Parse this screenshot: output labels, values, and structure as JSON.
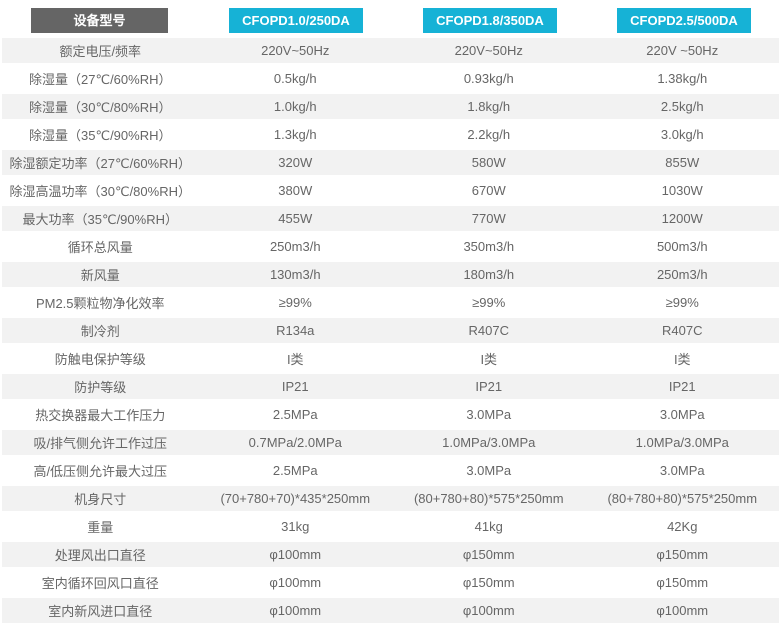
{
  "colors": {
    "corner_header_bg": "#656565",
    "model_header_bg": "#16b2d6",
    "header_text": "#ffffff",
    "alt_row_bg": "#f2f2f2",
    "body_text": "#666666"
  },
  "chart_data": {
    "type": "table",
    "corner_label": "设备型号",
    "columns": [
      "CFOPD1.0/250DA",
      "CFOPD1.8/350DA",
      "CFOPD2.5/500DA"
    ],
    "rows": [
      {
        "label": "额定电压/频率",
        "values": [
          "220V~50Hz",
          "220V~50Hz",
          "220V ~50Hz"
        ]
      },
      {
        "label": "除湿量（27℃/60%RH）",
        "values": [
          "0.5kg/h",
          "0.93kg/h",
          "1.38kg/h"
        ]
      },
      {
        "label": "除湿量（30℃/80%RH）",
        "values": [
          "1.0kg/h",
          "1.8kg/h",
          "2.5kg/h"
        ]
      },
      {
        "label": "除湿量（35℃/90%RH）",
        "values": [
          "1.3kg/h",
          "2.2kg/h",
          "3.0kg/h"
        ]
      },
      {
        "label": "除湿额定功率（27℃/60%RH）",
        "values": [
          "320W",
          "580W",
          "855W"
        ]
      },
      {
        "label": "除湿高温功率（30℃/80%RH）",
        "values": [
          "380W",
          "670W",
          "1030W"
        ]
      },
      {
        "label": "最大功率（35℃/90%RH）",
        "values": [
          "455W",
          "770W",
          "1200W"
        ]
      },
      {
        "label": "循环总风量",
        "values": [
          "250m3/h",
          "350m3/h",
          "500m3/h"
        ]
      },
      {
        "label": "新风量",
        "values": [
          "130m3/h",
          "180m3/h",
          "250m3/h"
        ]
      },
      {
        "label": "PM2.5颗粒物净化效率",
        "values": [
          "≥99%",
          "≥99%",
          "≥99%"
        ]
      },
      {
        "label": "制冷剂",
        "values": [
          "R134a",
          "R407C",
          "R407C"
        ]
      },
      {
        "label": "防触电保护等级",
        "values": [
          "I类",
          "I类",
          "I类"
        ]
      },
      {
        "label": "防护等级",
        "values": [
          "IP21",
          "IP21",
          "IP21"
        ]
      },
      {
        "label": "热交换器最大工作压力",
        "values": [
          "2.5MPa",
          "3.0MPa",
          "3.0MPa"
        ]
      },
      {
        "label": "吸/排气侧允许工作过压",
        "values": [
          "0.7MPa/2.0MPa",
          "1.0MPa/3.0MPa",
          "1.0MPa/3.0MPa"
        ]
      },
      {
        "label": "高/低压侧允许最大过压",
        "values": [
          "2.5MPa",
          "3.0MPa",
          "3.0MPa"
        ]
      },
      {
        "label": "机身尺寸",
        "values": [
          "(70+780+70)*435*250mm",
          "(80+780+80)*575*250mm",
          "(80+780+80)*575*250mm"
        ]
      },
      {
        "label": "重量",
        "values": [
          "31kg",
          "41kg",
          "42Kg"
        ]
      },
      {
        "label": "处理风出口直径",
        "values": [
          "φ100mm",
          "φ150mm",
          "φ150mm"
        ]
      },
      {
        "label": "室内循环回风口直径",
        "values": [
          "φ100mm",
          "φ150mm",
          "φ150mm"
        ]
      },
      {
        "label": "室内新风进口直径",
        "values": [
          "φ100mm",
          "φ100mm",
          "φ100mm"
        ]
      }
    ]
  }
}
